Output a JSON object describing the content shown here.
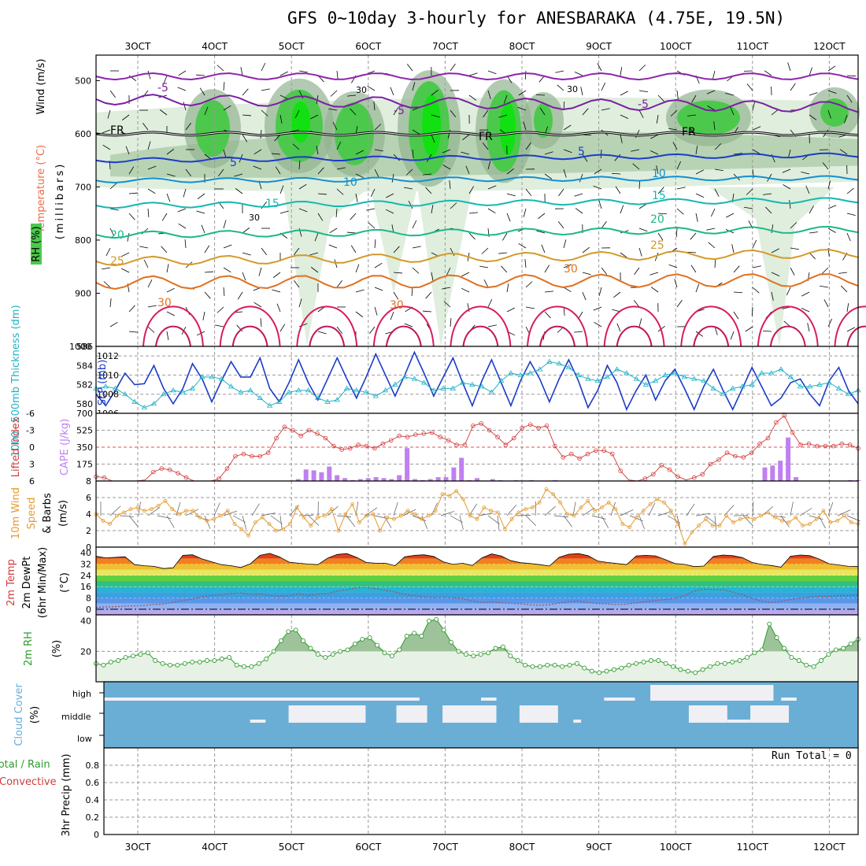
{
  "title": "GFS 0~10day 3-hourly for ANESBARAKA (4.75E, 19.5N)",
  "date_ticks": [
    "3OCT",
    "4OCT",
    "5OCT",
    "6OCT",
    "7OCT",
    "8OCT",
    "9OCT",
    "10OCT",
    "11OCT",
    "12OCT"
  ],
  "colors": {
    "rh_light": "#dfeedd",
    "rh_mid": "#b7d3b3",
    "rh_dark": "#93b392",
    "rh_green": "#4cc94c",
    "rh_bright": "#11e011",
    "slp": "#1c3cc8",
    "thickness": "#22b2c6",
    "lifted": "#d23c3c",
    "cape": "#c080f0",
    "wind10m": "#e59a30",
    "rh2m": "#2e9a2e",
    "cloud": "#6aaed6",
    "cloud_fill": "#f0f0f4"
  },
  "panels": {
    "upper": {
      "y_label_wind": "Wind (m/s)",
      "y_label_temp": "Temperature (°C)",
      "y_label_rh": "RH (%)",
      "y_label_units": "(millibars)",
      "y_ticks": [
        "500",
        "600",
        "700",
        "800",
        "900",
        "1000"
      ],
      "contour_labels": {
        "fr": "FR",
        "minus5": "-5",
        "plus5": "5",
        "t10": "10",
        "t15": "15",
        "t20": "20",
        "t25": "25",
        "t30": "30",
        "rh30": "30"
      }
    },
    "thickness": {
      "label_left": "1000~500mb Thickness (dm)",
      "label_right": "SLP (mb)",
      "y_ticks_left": [
        "586",
        "584",
        "582",
        "580"
      ],
      "y_ticks_right": [
        "1012",
        "1010",
        "1008",
        "1006"
      ]
    },
    "stability": {
      "label_left": "Lifted Index",
      "label_right": "CAPE (J/kg)",
      "y_ticks_left": [
        "-6",
        "-3",
        "0",
        "3",
        "6"
      ],
      "y_ticks_right": [
        "700",
        "525",
        "350",
        "175"
      ]
    },
    "wind10m": {
      "label_a": "10m Wind",
      "label_b": "Speed",
      "label_c": "& Barbs",
      "label_unit": "(m/s)",
      "y_ticks": [
        "8",
        "6",
        "4",
        "2",
        "0"
      ]
    },
    "temp2m": {
      "label_a": "2m Temp",
      "label_b": "2m DewPt",
      "label_c": "(6hr Min/Max)",
      "label_unit": "(°C)",
      "y_ticks": [
        "40",
        "32",
        "24",
        "16",
        "8",
        "0"
      ]
    },
    "rh2m": {
      "label": "2m RH",
      "label_unit": "(%)",
      "y_ticks": [
        "40",
        "20"
      ]
    },
    "cloud": {
      "label": "Cloud Cover",
      "label_unit": "(%)",
      "levels": [
        "high",
        "middle",
        "low"
      ]
    },
    "precip": {
      "label_a": "Total / Rain",
      "label_b": "Convective",
      "label_c": "3hr Precip (mm)",
      "y_ticks": [
        "0.8",
        "0.6",
        "0.4",
        "0.2",
        "0"
      ],
      "run_total": "Run Total = 0"
    }
  },
  "chart_data": [
    {
      "type": "line",
      "title": "1000~500mb Thickness / SLP",
      "series": [
        {
          "name": "SLP (mb)",
          "axis": "right",
          "ylim": [
            1006,
            1013
          ],
          "values": [
            1008.0,
            1006.8,
            1008.4,
            1010.2,
            1009.0,
            1009.1,
            1011.0,
            1008.6,
            1007.0,
            1008.6,
            1011.2,
            1009.6,
            1007.2,
            1009.4,
            1011.4,
            1009.8,
            1009.8,
            1011.8,
            1008.6,
            1007.2,
            1009.2,
            1011.6,
            1009.2,
            1007.4,
            1009.6,
            1011.8,
            1009.6,
            1007.6,
            1009.8,
            1012.2,
            1010.0,
            1007.8,
            1010.0,
            1012.4,
            1010.2,
            1007.8,
            1009.8,
            1011.8,
            1009.2,
            1006.8,
            1009.4,
            1011.6,
            1009.2,
            1006.8,
            1009.4,
            1011.4,
            1009.6,
            1007.2,
            1009.6,
            1011.6,
            1009.4,
            1006.6,
            1008.4,
            1011.0,
            1009.2,
            1006.4,
            1008.4,
            1010.0,
            1007.4,
            1009.4,
            1010.6,
            1008.6,
            1006.4,
            1008.8,
            1010.6,
            1008.4,
            1006.4,
            1008.6,
            1010.8,
            1008.8,
            1006.8,
            1007.6,
            1009.2,
            1009.6,
            1008.0,
            1006.8,
            1009.4,
            1010.8,
            1008.4,
            1007.0
          ]
        },
        {
          "name": "1000~500mb Thickness (dm)",
          "axis": "left",
          "ylim": [
            579,
            586
          ],
          "values": [
            581.6,
            581.8,
            581.6,
            581.0,
            580.2,
            579.6,
            580.0,
            581.0,
            581.4,
            581.2,
            581.6,
            582.8,
            582.8,
            582.6,
            581.8,
            581.2,
            581.4,
            580.6,
            579.8,
            580.2,
            581.2,
            581.4,
            581.4,
            580.6,
            580.2,
            580.4,
            581.6,
            581.4,
            581.2,
            580.8,
            581.4,
            582.0,
            582.8,
            582.6,
            582.2,
            581.4,
            581.6,
            581.6,
            582.2,
            582.0,
            581.8,
            581.2,
            582.4,
            583.2,
            583.0,
            583.2,
            583.6,
            584.4,
            584.2,
            583.8,
            583.0,
            582.6,
            582.4,
            582.8,
            583.6,
            583.2,
            582.6,
            582.0,
            582.4,
            583.0,
            583.2,
            582.8,
            582.6,
            582.4,
            581.6,
            581.0,
            581.6,
            581.8,
            582.0,
            583.2,
            583.2,
            583.6,
            582.8,
            581.8,
            581.8,
            582.0,
            582.2,
            581.6,
            581.0,
            581.4
          ]
        }
      ]
    },
    {
      "type": "bar",
      "title": "Lifted Index / CAPE",
      "series": [
        {
          "name": "Lifted Index",
          "axis": "left",
          "ylim": [
            -6,
            6
          ],
          "values": [
            5.2,
            5.4,
            6.0,
            6.4,
            6.6,
            6.4,
            5.8,
            4.4,
            3.8,
            4.0,
            4.6,
            5.4,
            6.2,
            6.4,
            6.2,
            5.6,
            3.8,
            1.6,
            1.2,
            1.6,
            1.6,
            1.0,
            -1.6,
            -3.6,
            -3.0,
            -2.0,
            -3.0,
            -2.4,
            -1.6,
            -0.2,
            0.4,
            0.2,
            -0.4,
            -0.2,
            0.2,
            -0.6,
            -1.2,
            -2.0,
            -1.8,
            -2.2,
            -2.4,
            -2.6,
            -1.8,
            -1.2,
            -0.4,
            -0.4,
            -3.8,
            -4.2,
            -3.0,
            -1.8,
            -0.4,
            -1.6,
            -3.4,
            -4.0,
            -3.4,
            -3.8,
            -0.2,
            1.8,
            1.2,
            2.0,
            1.2,
            0.6,
            0.6,
            1.2,
            4.2,
            5.8,
            6.2,
            5.6,
            4.8,
            3.2,
            4.0,
            5.2,
            5.8,
            5.4,
            4.8,
            3.0,
            2.2,
            1.0,
            1.6,
            1.8,
            1.0,
            -0.6,
            -1.6,
            -4.4,
            -5.6,
            -2.6,
            -0.4,
            -0.6,
            -0.2,
            -0.2,
            -0.2,
            -0.6,
            -0.4,
            0.2
          ],
          "x_offset": 0
        },
        {
          "name": "CAPE (J/kg)",
          "axis": "right",
          "ylim": [
            0,
            700
          ],
          "values": [
            0,
            0,
            0,
            0,
            0,
            0,
            0,
            0,
            0,
            0,
            0,
            0,
            0,
            0,
            0,
            0,
            0,
            0,
            0,
            0,
            0,
            0,
            0,
            0,
            0,
            0,
            20,
            120,
            110,
            90,
            150,
            60,
            30,
            10,
            20,
            30,
            40,
            30,
            20,
            60,
            340,
            20,
            10,
            20,
            40,
            40,
            140,
            240,
            10,
            30,
            5,
            20,
            10,
            5,
            10,
            5,
            10,
            0,
            0,
            10,
            0,
            0,
            0,
            0,
            0,
            0,
            0,
            0,
            0,
            0,
            0,
            0,
            0,
            0,
            0,
            0,
            0,
            0,
            0,
            0,
            0,
            0,
            0,
            0,
            0,
            0,
            140,
            160,
            210,
            450,
            40,
            0,
            0,
            0,
            0,
            0,
            0,
            10,
            10
          ]
        }
      ]
    },
    {
      "type": "line",
      "title": "10m Wind Speed",
      "ylim": [
        0,
        8
      ],
      "series": [
        {
          "name": "10m Wind Speed (m/s)",
          "values": [
            4.0,
            3.2,
            2.8,
            3.8,
            4.2,
            4.6,
            4.8,
            4.4,
            4.6,
            5.0,
            5.6,
            4.6,
            4.0,
            4.4,
            4.4,
            3.6,
            3.2,
            3.4,
            3.8,
            4.4,
            2.8,
            2.2,
            1.4,
            3.0,
            3.6,
            2.8,
            2.0,
            2.2,
            2.8,
            4.8,
            3.6,
            2.6,
            3.6,
            3.8,
            4.6,
            2.0,
            4.0,
            5.2,
            3.0,
            3.8,
            4.0,
            2.0,
            3.6,
            3.4,
            3.8,
            4.4,
            4.0,
            3.4,
            3.8,
            4.4,
            6.4,
            6.2,
            6.8,
            5.8,
            3.8,
            3.4,
            4.8,
            4.4,
            4.2,
            2.2,
            3.4,
            4.2,
            4.6,
            4.8,
            5.4,
            7.0,
            6.4,
            5.4,
            4.0,
            3.8,
            4.8,
            5.6,
            4.4,
            4.8,
            5.4,
            4.6,
            2.8,
            2.4,
            3.6,
            4.4,
            5.2,
            5.8,
            5.4,
            4.4,
            2.8,
            0.4,
            1.8,
            2.6,
            3.4,
            2.6,
            2.6,
            3.8,
            3.0,
            3.4,
            3.6,
            3.4,
            3.8,
            4.2,
            3.6,
            3.2,
            3.0,
            3.6,
            2.6,
            2.8,
            3.4,
            4.4,
            3.0,
            3.2,
            3.8,
            3.0,
            2.8
          ]
        }
      ]
    },
    {
      "type": "area",
      "title": "2m Temp / 2m DewPt",
      "ylim": [
        -4,
        44
      ],
      "series": [
        {
          "name": "2m Temp (°C)",
          "values": [
            37.6,
            36.4,
            36.8,
            37.2,
            31.6,
            30.8,
            30.4,
            28.8,
            29.4,
            38.2,
            38.6,
            35.6,
            33.6,
            31.6,
            30.8,
            29.6,
            32.2,
            38.2,
            39.6,
            37.2,
            33.4,
            32.6,
            32.0,
            31.6,
            36.2,
            38.8,
            39.4,
            36.8,
            33.2,
            32.6,
            32.6,
            30.8,
            37.2,
            38.2,
            38.6,
            37.4,
            33.6,
            31.8,
            32.6,
            31.0,
            36.4,
            39.2,
            37.8,
            34.4,
            33.0,
            32.4,
            31.6,
            30.6,
            36.8,
            39.0,
            39.4,
            38.0,
            34.2,
            33.2,
            32.4,
            31.6,
            37.8,
            38.2,
            37.8,
            35.2,
            32.4,
            31.8,
            30.2,
            30.6,
            37.4,
            38.4,
            38.0,
            36.6,
            33.2,
            31.8,
            31.0,
            29.8,
            37.6,
            38.4,
            38.0,
            35.4,
            32.2,
            31.4,
            30.4,
            30.2
          ]
        },
        {
          "name": "2m DewPt (°C)",
          "values": [
            1.2,
            1.6,
            1.8,
            2.2,
            2.4,
            2.6,
            3.4,
            3.6,
            5.0,
            6.2,
            7.2,
            9.0,
            9.8,
            10.2,
            11.2,
            11.6,
            10.4,
            10.8,
            9.8,
            9.2,
            9.6,
            10.8,
            9.8,
            10.6,
            11.2,
            12.8,
            13.8,
            15.2,
            15.4,
            14.4,
            13.4,
            12.2,
            10.4,
            9.6,
            8.8,
            8.2,
            8.6,
            8.2,
            7.6,
            5.8,
            4.8,
            5.2,
            4.6,
            4.2,
            3.8,
            3.2,
            2.8,
            3.2,
            4.4,
            5.4,
            5.8,
            4.8,
            4.0,
            3.8,
            3.2,
            3.6,
            4.6,
            5.4,
            6.2,
            6.8,
            7.6,
            9.6,
            12.8,
            14.2,
            14.0,
            13.8,
            12.2,
            10.2,
            7.8,
            5.6,
            4.8,
            5.6,
            6.8,
            7.8,
            8.6,
            9.2,
            9.2,
            9.8,
            9.6,
            10.0
          ]
        }
      ]
    },
    {
      "type": "area",
      "title": "2m RH",
      "ylim": [
        0,
        44
      ],
      "series": [
        {
          "name": "2m RH (%)",
          "values": [
            12,
            11,
            13,
            14,
            16,
            17,
            18,
            19,
            14,
            12,
            11,
            11,
            12,
            13,
            13,
            14,
            14,
            15,
            16,
            11,
            10,
            10,
            12,
            15,
            20,
            27,
            33,
            34,
            27,
            22,
            18,
            16,
            18,
            20,
            21,
            25,
            28,
            29,
            24,
            19,
            17,
            21,
            30,
            32,
            30,
            40,
            41,
            34,
            26,
            20,
            18,
            17,
            18,
            19,
            22,
            23,
            17,
            14,
            11,
            10,
            10,
            11,
            11,
            10,
            11,
            12,
            9,
            7,
            6,
            7,
            8,
            9,
            11,
            12,
            13,
            14,
            14,
            12,
            10,
            8,
            7,
            6,
            8,
            10,
            12,
            12,
            13,
            14,
            16,
            19,
            21,
            38,
            29,
            22,
            16,
            14,
            11,
            10,
            14,
            18,
            21,
            22,
            25,
            28
          ]
        }
      ]
    },
    {
      "type": "heatmap",
      "title": "Cloud Cover",
      "rows": [
        "high",
        "middle",
        "low"
      ],
      "description_values": {
        "high_blocks": [
          [
            2.5,
            6.6
          ],
          [
            5.0,
            5.5
          ],
          [
            7.4,
            7.6
          ],
          [
            9.0,
            9.4
          ],
          [
            9.6,
            11.2
          ],
          [
            11.3,
            11.5
          ]
        ],
        "middle_blocks": [
          [
            4.9,
            5.4
          ],
          [
            5.4,
            5.9
          ],
          [
            6.3,
            6.7
          ],
          [
            6.9,
            7.6
          ],
          [
            7.9,
            8.4
          ],
          [
            10.1,
            10.6
          ],
          [
            10.9,
            11.4
          ]
        ],
        "low_blocks": [
          [
            4.4,
            4.6
          ],
          [
            5.0,
            5.2
          ],
          [
            8.6,
            8.7
          ],
          [
            10.6,
            10.9
          ]
        ]
      }
    },
    {
      "type": "bar",
      "title": "3hr Precip (mm)",
      "ylim": [
        0,
        1
      ],
      "series": [
        {
          "name": "Total / Rain",
          "values": []
        },
        {
          "name": "Convective",
          "values": []
        }
      ]
    }
  ]
}
